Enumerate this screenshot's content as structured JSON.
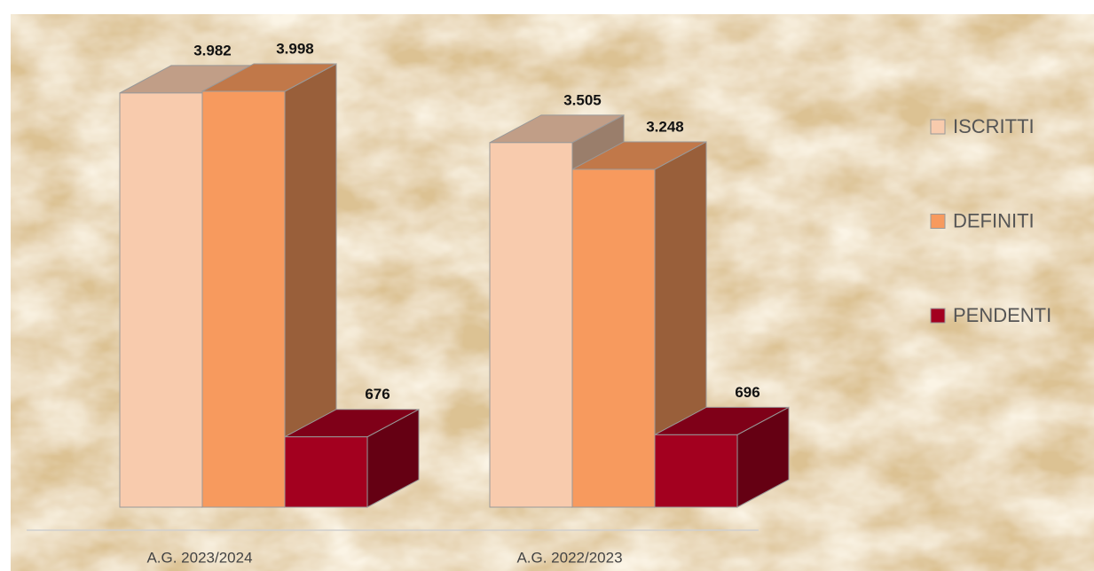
{
  "chart_data": {
    "type": "bar3d",
    "categories": [
      "A.G. 2023/2024",
      "A.G. 2022/2023"
    ],
    "series": [
      {
        "name": "ISCRITTI",
        "color": "#f8cbad",
        "values": [
          3982,
          3505
        ],
        "value_labels": [
          "3.982",
          "3.505"
        ]
      },
      {
        "name": "DEFINITI",
        "color": "#f79a5e",
        "values": [
          3998,
          3248
        ],
        "value_labels": [
          "3.998",
          "3.248"
        ]
      },
      {
        "name": "PENDENTI",
        "color": "#a3001f",
        "values": [
          676,
          696
        ],
        "value_labels": [
          "676",
          "696"
        ]
      }
    ],
    "legend": "right"
  }
}
